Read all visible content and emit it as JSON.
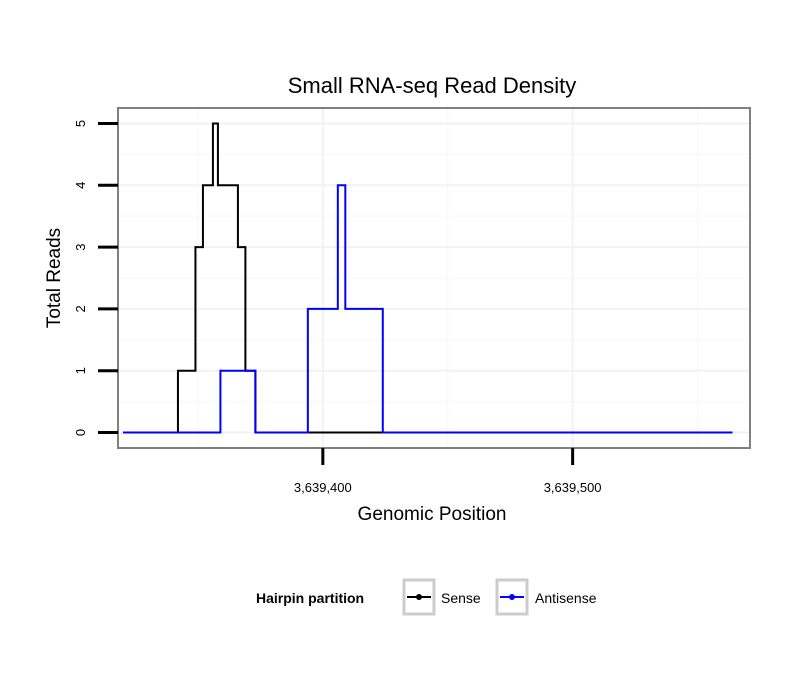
{
  "chart_data": {
    "type": "line",
    "title": "Small RNA-seq Read Density",
    "xlabel": "Genomic Position",
    "ylabel": "Total Reads",
    "xlim": [
      3639318,
      3639571
    ],
    "ylim": [
      -0.25,
      5.25
    ],
    "x_ticks": [
      3639400,
      3639500
    ],
    "x_tick_labels": [
      "3,639,400",
      "3,639,500"
    ],
    "y_ticks": [
      0,
      1,
      2,
      3,
      4,
      5
    ],
    "y_tick_labels": [
      "0",
      "1",
      "2",
      "3",
      "4",
      "5"
    ],
    "grid": true,
    "legend": {
      "title": "Hairpin partition",
      "position": "bottom"
    },
    "series": [
      {
        "name": "Sense",
        "color": "#000000",
        "step": "post",
        "x": [
          3639320,
          3639342,
          3639349,
          3639352,
          3639356,
          3639358,
          3639359,
          3639366,
          3639369,
          3639373,
          3639381,
          3639564
        ],
        "y": [
          0,
          1,
          3,
          4,
          5,
          4,
          4,
          3,
          1,
          0,
          0,
          0
        ]
      },
      {
        "name": "Antisense",
        "color": "#0000ff",
        "step": "post",
        "x": [
          3639320,
          3639359,
          3639373,
          3639394,
          3639406,
          3639409,
          3639424,
          3639564
        ],
        "y": [
          0,
          1,
          0,
          2,
          4,
          2,
          0,
          0
        ]
      }
    ]
  }
}
